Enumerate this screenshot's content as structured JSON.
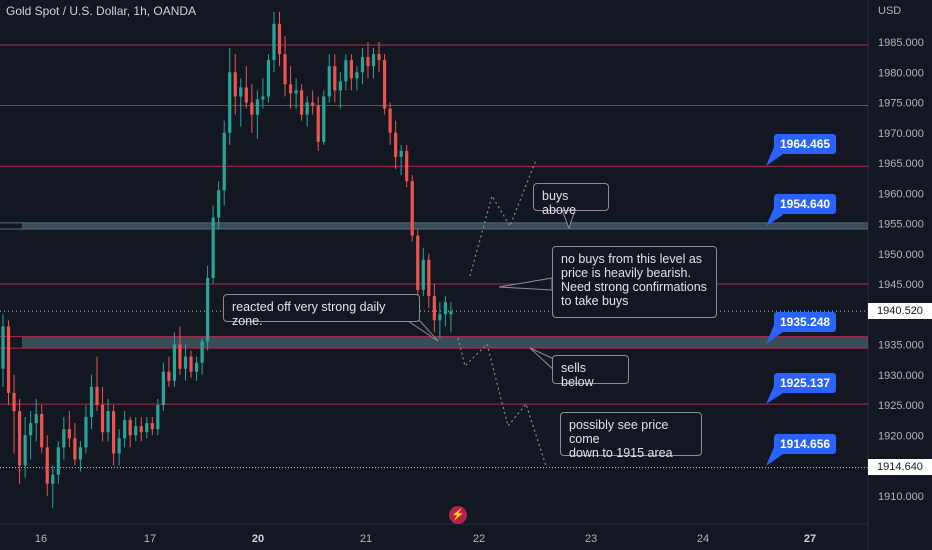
{
  "header": {
    "title": "Gold Spot / U.S. Dollar, 1h, OANDA",
    "currency": "USD"
  },
  "colors": {
    "background": "#131722",
    "bull": "#26a69a",
    "bear": "#ef5350",
    "level_line": "#b22d4a",
    "zone": "#5d7886",
    "label_blue": "#2962ff"
  },
  "chart_data": {
    "type": "candlestick",
    "symbol": "Gold Spot / U.S. Dollar",
    "interval": "1h",
    "ylim": [
      1905,
      1990
    ],
    "x_ticks": [
      {
        "label": "16",
        "bold": false
      },
      {
        "label": "17",
        "bold": false
      },
      {
        "label": "20",
        "bold": true
      },
      {
        "label": "21",
        "bold": false
      },
      {
        "label": "22",
        "bold": false
      },
      {
        "label": "23",
        "bold": false
      },
      {
        "label": "24",
        "bold": false
      },
      {
        "label": "27",
        "bold": true
      }
    ],
    "y_ticks": [
      "1985.000",
      "1980.000",
      "1975.000",
      "1970.000",
      "1965.000",
      "1960.000",
      "1955.000",
      "1950.000",
      "1945.000",
      "1940.000",
      "1935.000",
      "1930.000",
      "1925.000",
      "1920.000",
      "1915.000",
      "1910.000"
    ],
    "y_tick_values": [
      1985,
      1980,
      1975,
      1970,
      1965,
      1960,
      1955,
      1950,
      1945,
      1940,
      1935,
      1930,
      1925,
      1920,
      1915,
      1910
    ],
    "current_price": "1940.520",
    "current_price_value": 1940.52,
    "marked_price": "1914.640",
    "marked_price_value": 1914.64,
    "levels": [
      {
        "value": 1984.5
      },
      {
        "value": 1974.5
      },
      {
        "value": 1964.465,
        "label": "1964.465"
      },
      {
        "value": 1945.0
      },
      {
        "value": 1925.137,
        "label": "1925.137"
      }
    ],
    "zones": [
      {
        "low": 1954.1,
        "high": 1955.1,
        "label": "1954.640",
        "label_value": 1954.64
      },
      {
        "low": 1934.4,
        "high": 1936.3,
        "label": "1935.248",
        "label_value": 1935.248
      }
    ],
    "extra_labels": [
      {
        "label": "1914.656",
        "value": 1914.656
      }
    ],
    "candles": [
      [
        1931.0,
        1940.0,
        1928.0,
        1938.0
      ],
      [
        1938.0,
        1939.0,
        1925.0,
        1927.0
      ],
      [
        1927.0,
        1930.0,
        1917.0,
        1924.0
      ],
      [
        1924.0,
        1926.0,
        1912.0,
        1915.0
      ],
      [
        1915.0,
        1923.0,
        1913.0,
        1920.0
      ],
      [
        1920.0,
        1924.0,
        1916.0,
        1922.0
      ],
      [
        1922.0,
        1926.0,
        1919.0,
        1923.5
      ],
      [
        1923.5,
        1925.0,
        1917.0,
        1918.0
      ],
      [
        1918.0,
        1920.0,
        1910.0,
        1912.0
      ],
      [
        1912.0,
        1915.0,
        1908.0,
        1913.5
      ],
      [
        1913.5,
        1919.0,
        1912.0,
        1918.0
      ],
      [
        1918.0,
        1923.0,
        1916.0,
        1921.0
      ],
      [
        1921.0,
        1924.0,
        1918.0,
        1919.5
      ],
      [
        1919.5,
        1922.0,
        1915.0,
        1916.0
      ],
      [
        1916.0,
        1919.0,
        1914.0,
        1918.0
      ],
      [
        1918.0,
        1925.0,
        1917.0,
        1923.0
      ],
      [
        1923.0,
        1930.0,
        1921.0,
        1928.0
      ],
      [
        1928.0,
        1933.0,
        1924.0,
        1925.0
      ],
      [
        1925.0,
        1928.0,
        1919.0,
        1920.5
      ],
      [
        1920.5,
        1926.0,
        1919.0,
        1924.0
      ],
      [
        1924.0,
        1925.0,
        1915.0,
        1917.0
      ],
      [
        1917.0,
        1921.0,
        1915.0,
        1919.5
      ],
      [
        1919.5,
        1924.0,
        1918.0,
        1922.5
      ],
      [
        1922.5,
        1923.0,
        1918.0,
        1920.0
      ],
      [
        1920.0,
        1923.0,
        1919.0,
        1921.5
      ],
      [
        1921.5,
        1923.0,
        1919.0,
        1920.5
      ],
      [
        1920.5,
        1923.0,
        1919.5,
        1922.0
      ],
      [
        1922.0,
        1923.0,
        1920.0,
        1921.0
      ],
      [
        1921.0,
        1926.0,
        1920.0,
        1925.0
      ],
      [
        1925.0,
        1932.0,
        1924.0,
        1930.5
      ],
      [
        1930.5,
        1933.0,
        1928.0,
        1929.0
      ],
      [
        1929.0,
        1937.0,
        1928.0,
        1935.0
      ],
      [
        1935.0,
        1938.0,
        1930.0,
        1931.0
      ],
      [
        1931.0,
        1935.0,
        1929.0,
        1933.0
      ],
      [
        1933.0,
        1934.0,
        1929.5,
        1930.5
      ],
      [
        1930.5,
        1933.0,
        1929.0,
        1932.0
      ],
      [
        1932.0,
        1936.0,
        1930.0,
        1935.5
      ],
      [
        1935.5,
        1948.0,
        1934.0,
        1946.0
      ],
      [
        1946.0,
        1958.0,
        1945.0,
        1956.0
      ],
      [
        1956.0,
        1962.0,
        1954.0,
        1960.5
      ],
      [
        1960.5,
        1972.0,
        1958.0,
        1970.0
      ],
      [
        1970.0,
        1984.0,
        1968.0,
        1980.0
      ],
      [
        1980.0,
        1983.0,
        1973.0,
        1976.0
      ],
      [
        1976.0,
        1979.0,
        1971.0,
        1977.5
      ],
      [
        1977.5,
        1981.0,
        1974.0,
        1975.0
      ],
      [
        1975.0,
        1978.0,
        1970.0,
        1973.0
      ],
      [
        1973.0,
        1977.0,
        1969.0,
        1975.5
      ],
      [
        1975.5,
        1979.0,
        1974.0,
        1976.0
      ],
      [
        1976.0,
        1983.0,
        1975.0,
        1982.0
      ],
      [
        1982.0,
        1990.0,
        1980.0,
        1988.0
      ],
      [
        1988.0,
        1990.0,
        1981.0,
        1983.0
      ],
      [
        1983.0,
        1986.0,
        1976.0,
        1978.0
      ],
      [
        1978.0,
        1981.0,
        1974.0,
        1976.5
      ],
      [
        1976.5,
        1979.0,
        1974.0,
        1977.0
      ],
      [
        1977.0,
        1978.0,
        1972.0,
        1973.0
      ],
      [
        1973.0,
        1976.0,
        1971.0,
        1975.0
      ],
      [
        1975.0,
        1977.0,
        1973.0,
        1974.5
      ],
      [
        1974.5,
        1976.0,
        1967.0,
        1968.5
      ],
      [
        1968.5,
        1977.0,
        1968.0,
        1976.0
      ],
      [
        1976.0,
        1983.0,
        1975.0,
        1981.0
      ],
      [
        1981.0,
        1983.0,
        1975.0,
        1977.0
      ],
      [
        1977.0,
        1980.0,
        1974.0,
        1978.5
      ],
      [
        1978.5,
        1983.0,
        1977.0,
        1982.0
      ],
      [
        1982.0,
        1983.0,
        1977.0,
        1979.0
      ],
      [
        1979.0,
        1981.0,
        1977.0,
        1980.0
      ],
      [
        1980.0,
        1984.0,
        1978.0,
        1982.5
      ],
      [
        1982.5,
        1985.0,
        1979.0,
        1981.0
      ],
      [
        1981.0,
        1984.0,
        1979.0,
        1983.0
      ],
      [
        1983.0,
        1985.0,
        1980.0,
        1982.0
      ],
      [
        1982.0,
        1983.0,
        1973.0,
        1974.0
      ],
      [
        1974.0,
        1975.0,
        1968.0,
        1970.0
      ],
      [
        1970.0,
        1972.0,
        1964.0,
        1966.0
      ],
      [
        1966.0,
        1968.0,
        1963.0,
        1967.0
      ],
      [
        1967.0,
        1968.0,
        1961.0,
        1962.0
      ],
      [
        1962.0,
        1963.0,
        1952.0,
        1953.0
      ],
      [
        1953.0,
        1954.0,
        1942.0,
        1944.0
      ],
      [
        1944.0,
        1951.0,
        1943.0,
        1949.0
      ],
      [
        1949.0,
        1950.0,
        1941.0,
        1943.0
      ],
      [
        1943.0,
        1945.0,
        1937.0,
        1939.0
      ],
      [
        1939.0,
        1942.0,
        1936.0,
        1940.0
      ],
      [
        1940.0,
        1943.0,
        1938.0,
        1942.0
      ],
      [
        1940.0,
        1942.0,
        1937.0,
        1940.5
      ]
    ]
  },
  "annotations": {
    "buys_above": "buys above",
    "no_buys": "no buys from this level as\nprice is heavily bearish.\n Need strong confirmations\nto take buys",
    "reacted": "reacted off very strong daily zone.",
    "sells_below": "sells below",
    "possibly": "possibly see price come\ndown to 1915 area"
  },
  "logo_icon": "tradingview-flash-icon"
}
